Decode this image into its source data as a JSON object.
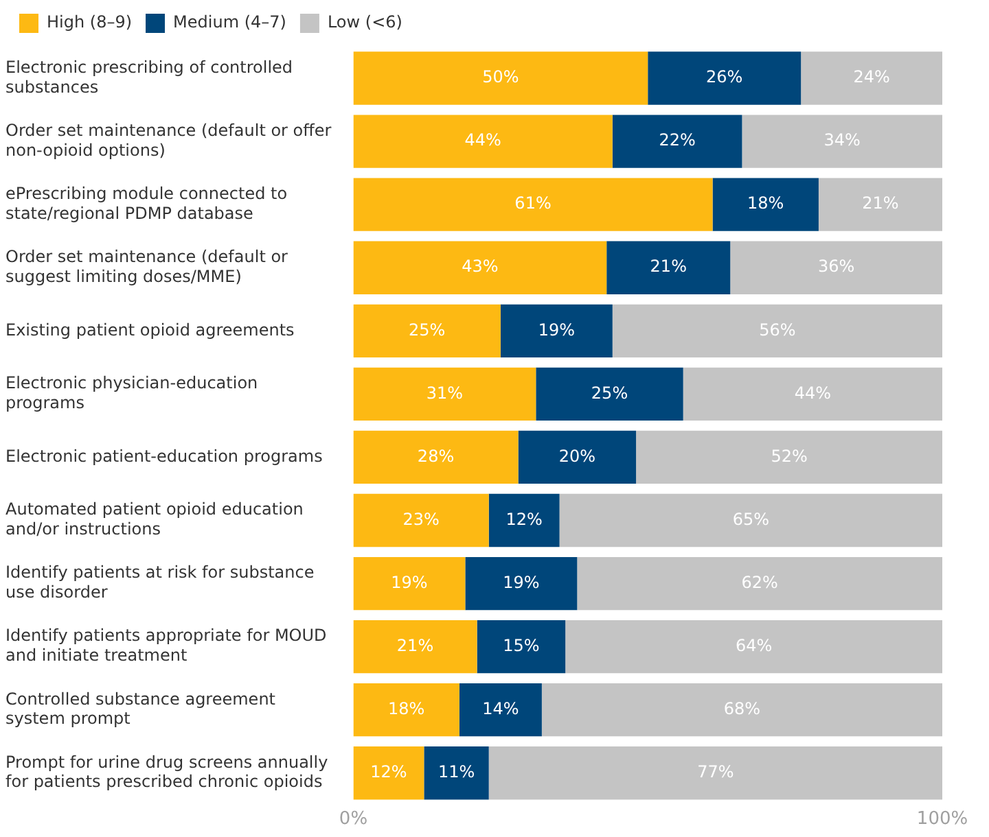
{
  "chart_data": {
    "type": "bar",
    "orientation": "horizontal",
    "stacked": true,
    "grid": false,
    "legend": "top left",
    "categories": [
      "Electronic prescribing of controlled substances",
      "Order set maintenance (default or offer non-opioid options)",
      "ePrescribing module connected to state/regional PDMP database",
      "Order set maintenance (default or suggest limiting doses/MME)",
      "Existing patient opioid agreements",
      "Electronic physician-education programs",
      "Electronic patient-education programs",
      "Automated patient opioid education and/or instructions",
      "Identify patients at risk for substance use disorder",
      "Identify patients appropriate for MOUD and initiate treatment",
      "Controlled substance agreement system prompt",
      "Prompt for urine drug screens annually for patients prescribed chronic opioids"
    ],
    "series": [
      {
        "name": "High (8–9)",
        "color": "#fdb913",
        "values": [
          50,
          44,
          61,
          43,
          25,
          31,
          28,
          23,
          19,
          21,
          18,
          12
        ],
        "value_labels": [
          "50%",
          "44%",
          "61%",
          "43%",
          "25%",
          "31%",
          "28%",
          "23%",
          "19%",
          "21%",
          "18%",
          "12%"
        ]
      },
      {
        "name": "Medium (4–7)",
        "color": "#00467a",
        "values": [
          26,
          22,
          18,
          21,
          19,
          25,
          20,
          12,
          19,
          15,
          14,
          11
        ],
        "value_labels": [
          "26%",
          "22%",
          "18%",
          "21%",
          "19%",
          "25%",
          "20%",
          "12%",
          "19%",
          "15%",
          "14%",
          "11%"
        ]
      },
      {
        "name": "Low (<6)",
        "color": "#c4c4c4",
        "values": [
          24,
          34,
          21,
          36,
          56,
          44,
          52,
          65,
          62,
          64,
          68,
          77
        ],
        "value_labels": [
          "24%",
          "34%",
          "21%",
          "36%",
          "56%",
          "44%",
          "52%",
          "65%",
          "62%",
          "64%",
          "68%",
          "77%"
        ]
      }
    ],
    "xlim": [
      0,
      100
    ],
    "xticks": [
      {
        "value": 0,
        "label": "0%"
      },
      {
        "value": 100,
        "label": "100%"
      }
    ]
  }
}
